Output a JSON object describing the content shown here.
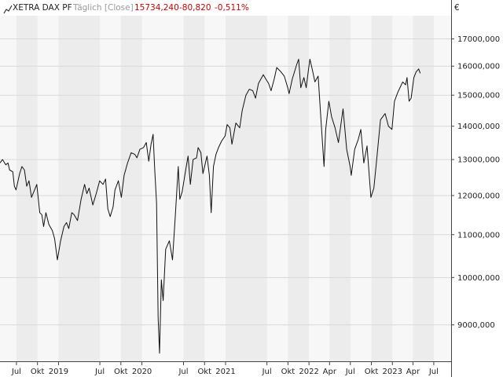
{
  "header": {
    "icon": "line-chart-icon",
    "instrument": "XETRA DAX PF",
    "interval": "Täglich [Close]",
    "last_value": "15734,240",
    "change": "-80,820",
    "change_pct": "-0,511%",
    "change_color": "#cc0000",
    "currency": "€"
  },
  "chart_data": {
    "type": "line",
    "scale": "log",
    "grid": true,
    "ylim": [
      8300,
      17900
    ],
    "y_ticks": [
      {
        "value": 17000,
        "label": "17000,000"
      },
      {
        "value": 16000,
        "label": "16000,000"
      },
      {
        "value": 15000,
        "label": "15000,000"
      },
      {
        "value": 14000,
        "label": "14000,000"
      },
      {
        "value": 13000,
        "label": "13000,000"
      },
      {
        "value": 12000,
        "label": "12000,000"
      },
      {
        "value": 11000,
        "label": "11000,000"
      },
      {
        "value": 10000,
        "label": "10000,000"
      },
      {
        "value": 9000,
        "label": "9000,000"
      }
    ],
    "xlim": [
      "2018-04-20",
      "2023-09-15"
    ],
    "x_ticks": [
      {
        "date": "2018-07-01",
        "label": "Jul"
      },
      {
        "date": "2018-10-01",
        "label": "Okt"
      },
      {
        "date": "2019-01-01",
        "label": "2019"
      },
      {
        "date": "2019-07-01",
        "label": "Jul"
      },
      {
        "date": "2019-10-01",
        "label": "Okt"
      },
      {
        "date": "2020-01-01",
        "label": "2020"
      },
      {
        "date": "2020-07-01",
        "label": "Jul"
      },
      {
        "date": "2020-10-01",
        "label": "Okt"
      },
      {
        "date": "2021-01-01",
        "label": "2021"
      },
      {
        "date": "2021-07-01",
        "label": "Jul"
      },
      {
        "date": "2021-10-01",
        "label": "Okt"
      },
      {
        "date": "2022-01-01",
        "label": "2022"
      },
      {
        "date": "2022-04-01",
        "label": "Apr"
      },
      {
        "date": "2022-07-01",
        "label": "Jul"
      },
      {
        "date": "2022-10-01",
        "label": "Okt"
      },
      {
        "date": "2023-01-01",
        "label": "2023"
      },
      {
        "date": "2023-04-01",
        "label": "Apr"
      },
      {
        "date": "2023-07-01",
        "label": "Jul"
      }
    ],
    "series": [
      {
        "color": "#111111",
        "points": [
          [
            "2018-04-20",
            12900
          ],
          [
            "2018-05-01",
            13000
          ],
          [
            "2018-05-15",
            12850
          ],
          [
            "2018-05-25",
            12900
          ],
          [
            "2018-06-01",
            12700
          ],
          [
            "2018-06-15",
            12650
          ],
          [
            "2018-06-22",
            12250
          ],
          [
            "2018-06-29",
            12150
          ],
          [
            "2018-07-15",
            12600
          ],
          [
            "2018-07-25",
            12800
          ],
          [
            "2018-08-05",
            12700
          ],
          [
            "2018-08-15",
            12250
          ],
          [
            "2018-08-25",
            12400
          ],
          [
            "2018-09-05",
            11950
          ],
          [
            "2018-09-15",
            12100
          ],
          [
            "2018-09-28",
            12300
          ],
          [
            "2018-10-11",
            11550
          ],
          [
            "2018-10-20",
            11500
          ],
          [
            "2018-10-28",
            11200
          ],
          [
            "2018-11-07",
            11550
          ],
          [
            "2018-11-20",
            11250
          ],
          [
            "2018-12-05",
            11100
          ],
          [
            "2018-12-15",
            10900
          ],
          [
            "2018-12-27",
            10400
          ],
          [
            "2019-01-10",
            10850
          ],
          [
            "2019-01-25",
            11200
          ],
          [
            "2019-02-05",
            11300
          ],
          [
            "2019-02-15",
            11150
          ],
          [
            "2019-02-28",
            11550
          ],
          [
            "2019-03-10",
            11500
          ],
          [
            "2019-03-25",
            11350
          ],
          [
            "2019-04-10",
            11900
          ],
          [
            "2019-04-25",
            12300
          ],
          [
            "2019-05-05",
            12050
          ],
          [
            "2019-05-15",
            12200
          ],
          [
            "2019-05-31",
            11750
          ],
          [
            "2019-06-15",
            12050
          ],
          [
            "2019-06-30",
            12400
          ],
          [
            "2019-07-15",
            12300
          ],
          [
            "2019-07-26",
            12450
          ],
          [
            "2019-08-05",
            11650
          ],
          [
            "2019-08-15",
            11450
          ],
          [
            "2019-08-28",
            11700
          ],
          [
            "2019-09-05",
            12150
          ],
          [
            "2019-09-20",
            12400
          ],
          [
            "2019-10-03",
            11950
          ],
          [
            "2019-10-15",
            12550
          ],
          [
            "2019-10-30",
            12900
          ],
          [
            "2019-11-15",
            13200
          ],
          [
            "2019-12-01",
            13150
          ],
          [
            "2019-12-10",
            13050
          ],
          [
            "2019-12-23",
            13300
          ],
          [
            "2020-01-08",
            13350
          ],
          [
            "2020-01-20",
            13500
          ],
          [
            "2020-01-31",
            12950
          ],
          [
            "2020-02-10",
            13450
          ],
          [
            "2020-02-19",
            13750
          ],
          [
            "2020-02-26",
            12700
          ],
          [
            "2020-03-05",
            11800
          ],
          [
            "2020-03-12",
            9150
          ],
          [
            "2020-03-18",
            8450
          ],
          [
            "2020-03-26",
            9950
          ],
          [
            "2020-04-03",
            9500
          ],
          [
            "2020-04-14",
            10650
          ],
          [
            "2020-04-30",
            10850
          ],
          [
            "2020-05-14",
            10400
          ],
          [
            "2020-05-27",
            11550
          ],
          [
            "2020-06-08",
            12800
          ],
          [
            "2020-06-15",
            11900
          ],
          [
            "2020-06-25",
            12100
          ],
          [
            "2020-07-08",
            12600
          ],
          [
            "2020-07-21",
            13100
          ],
          [
            "2020-07-31",
            12300
          ],
          [
            "2020-08-12",
            13000
          ],
          [
            "2020-08-27",
            13050
          ],
          [
            "2020-09-03",
            13350
          ],
          [
            "2020-09-15",
            13200
          ],
          [
            "2020-09-24",
            12600
          ],
          [
            "2020-10-12",
            13100
          ],
          [
            "2020-10-22",
            12550
          ],
          [
            "2020-10-30",
            11550
          ],
          [
            "2020-11-09",
            12800
          ],
          [
            "2020-11-20",
            13150
          ],
          [
            "2020-12-01",
            13350
          ],
          [
            "2020-12-15",
            13550
          ],
          [
            "2020-12-30",
            13700
          ],
          [
            "2021-01-08",
            14050
          ],
          [
            "2021-01-20",
            13950
          ],
          [
            "2021-01-29",
            13450
          ],
          [
            "2021-02-15",
            14100
          ],
          [
            "2021-03-04",
            13950
          ],
          [
            "2021-03-15",
            14500
          ],
          [
            "2021-03-31",
            15000
          ],
          [
            "2021-04-15",
            15200
          ],
          [
            "2021-04-30",
            15150
          ],
          [
            "2021-05-12",
            14900
          ],
          [
            "2021-05-25",
            15400
          ],
          [
            "2021-06-15",
            15700
          ],
          [
            "2021-06-30",
            15500
          ],
          [
            "2021-07-08",
            15400
          ],
          [
            "2021-07-19",
            15150
          ],
          [
            "2021-08-02",
            15550
          ],
          [
            "2021-08-13",
            15950
          ],
          [
            "2021-08-31",
            15800
          ],
          [
            "2021-09-15",
            15650
          ],
          [
            "2021-09-30",
            15250
          ],
          [
            "2021-10-06",
            15050
          ],
          [
            "2021-10-20",
            15550
          ],
          [
            "2021-11-08",
            16050
          ],
          [
            "2021-11-17",
            16250
          ],
          [
            "2021-11-26",
            15250
          ],
          [
            "2021-12-10",
            15600
          ],
          [
            "2021-12-20",
            15250
          ],
          [
            "2021-12-30",
            15900
          ],
          [
            "2022-01-05",
            16250
          ],
          [
            "2022-01-15",
            15900
          ],
          [
            "2022-01-27",
            15450
          ],
          [
            "2022-02-10",
            15650
          ],
          [
            "2022-02-24",
            14050
          ],
          [
            "2022-03-08",
            12800
          ],
          [
            "2022-03-15",
            13900
          ],
          [
            "2022-03-29",
            14800
          ],
          [
            "2022-04-10",
            14300
          ],
          [
            "2022-04-25",
            13950
          ],
          [
            "2022-05-10",
            13500
          ],
          [
            "2022-05-30",
            14550
          ],
          [
            "2022-06-15",
            13300
          ],
          [
            "2022-06-30",
            12800
          ],
          [
            "2022-07-05",
            12550
          ],
          [
            "2022-07-20",
            13300
          ],
          [
            "2022-08-05",
            13600
          ],
          [
            "2022-08-16",
            13900
          ],
          [
            "2022-08-29",
            12900
          ],
          [
            "2022-09-12",
            13400
          ],
          [
            "2022-09-29",
            11950
          ],
          [
            "2022-10-12",
            12200
          ],
          [
            "2022-10-25",
            13050
          ],
          [
            "2022-11-10",
            14200
          ],
          [
            "2022-11-30",
            14400
          ],
          [
            "2022-12-15",
            14000
          ],
          [
            "2022-12-30",
            13900
          ],
          [
            "2023-01-10",
            14800
          ],
          [
            "2023-01-25",
            15100
          ],
          [
            "2023-02-15",
            15450
          ],
          [
            "2023-02-28",
            15350
          ],
          [
            "2023-03-06",
            15600
          ],
          [
            "2023-03-15",
            14800
          ],
          [
            "2023-03-24",
            14900
          ],
          [
            "2023-04-05",
            15600
          ],
          [
            "2023-04-15",
            15800
          ],
          [
            "2023-04-26",
            15900
          ],
          [
            "2023-05-03",
            15750
          ]
        ]
      }
    ]
  }
}
